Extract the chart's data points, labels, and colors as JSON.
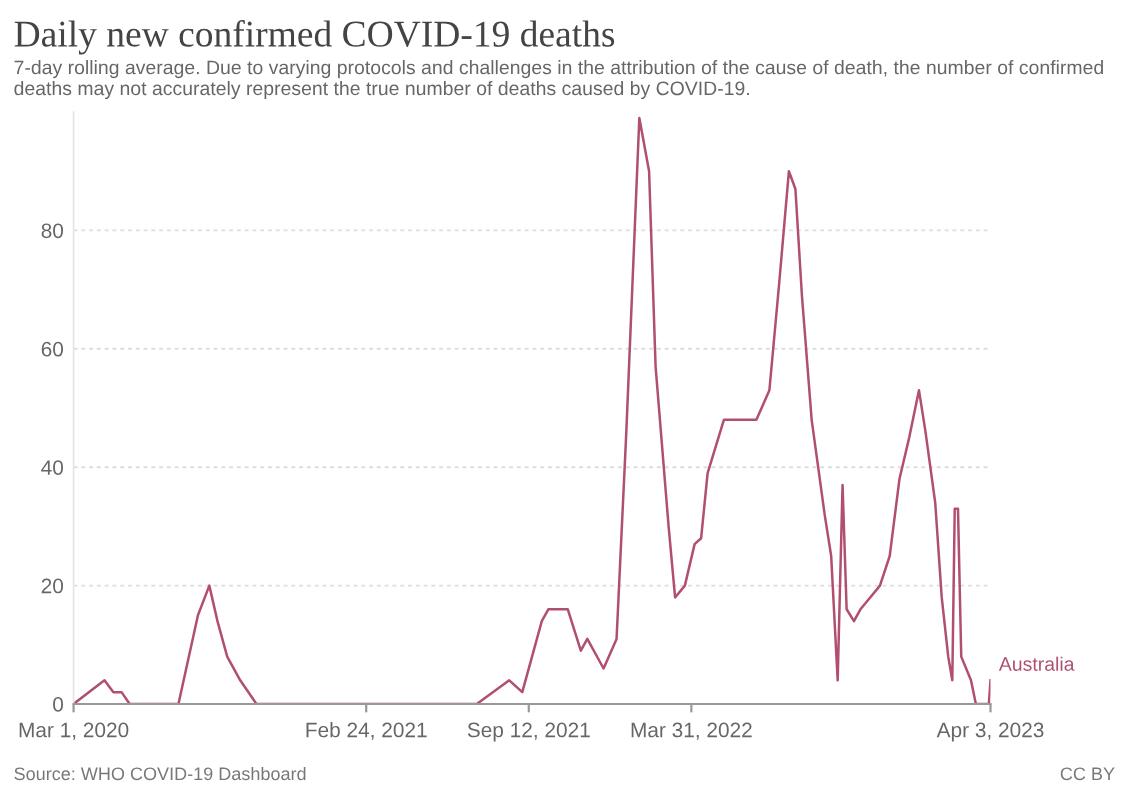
{
  "chart_data": {
    "type": "line",
    "title": "Daily new confirmed COVID-19 deaths",
    "subtitle": "7-day rolling average. Due to varying protocols and challenges in the attribution of the cause of death, the number of confirmed deaths may not accurately represent the true number of deaths caused by COVID-19.",
    "annotations": [
      "Source: WHO COVID-19 Dashboard",
      "CC BY"
    ],
    "x": [
      "2020-03-01",
      "2020-04-08",
      "2020-04-19",
      "2020-04-29",
      "2020-05-09",
      "2020-07-08",
      "2020-08-01",
      "2020-08-15",
      "2020-08-25",
      "2020-09-06",
      "2020-09-22",
      "2020-10-12",
      "2021-07-10",
      "2021-08-19",
      "2021-09-04",
      "2021-09-28",
      "2021-10-06",
      "2021-10-30",
      "2021-11-15",
      "2021-11-23",
      "2021-12-13",
      "2021-12-29",
      "2022-01-10",
      "2022-01-26",
      "2022-02-07",
      "2022-02-15",
      "2022-03-03",
      "2022-03-11",
      "2022-03-23",
      "2022-04-04",
      "2022-04-12",
      "2022-04-20",
      "2022-05-10",
      "2022-06-19",
      "2022-07-05",
      "2022-07-17",
      "2022-07-29",
      "2022-08-06",
      "2022-08-14",
      "2022-08-26",
      "2022-09-11",
      "2022-09-19",
      "2022-09-27",
      "2022-10-03",
      "2022-10-08",
      "2022-10-17",
      "2022-10-25",
      "2022-11-06",
      "2022-11-18",
      "2022-11-30",
      "2022-12-12",
      "2022-12-24",
      "2023-01-05",
      "2023-01-13",
      "2023-01-25",
      "2023-02-02",
      "2023-02-10",
      "2023-02-15",
      "2023-02-18",
      "2023-02-22",
      "2023-02-26",
      "2023-03-10",
      "2023-03-16",
      "2023-04-01",
      "2023-04-03"
    ],
    "series": [
      {
        "name": "Australia",
        "color": "#b0506e",
        "values": [
          0,
          4,
          2,
          2,
          0,
          0,
          15,
          20,
          14,
          8,
          4,
          0,
          0,
          4,
          2,
          14,
          16,
          16,
          9,
          11,
          6,
          11,
          46,
          99,
          90,
          57,
          30,
          18,
          20,
          27,
          28,
          39,
          48,
          48,
          53,
          71,
          90,
          87,
          69,
          48,
          32,
          25,
          4,
          37,
          16,
          14,
          16,
          18,
          20,
          25,
          38,
          45,
          53,
          46,
          34,
          18,
          8,
          4,
          33,
          33,
          8,
          4,
          0,
          0,
          4
        ]
      }
    ],
    "xlim": [
      "2020-03-01",
      "2023-04-03"
    ],
    "xticks": [
      {
        "value": "2020-03-01",
        "label": "Mar 1, 2020"
      },
      {
        "value": "2021-02-24",
        "label": "Feb 24, 2021"
      },
      {
        "value": "2021-09-12",
        "label": "Sep 12, 2021"
      },
      {
        "value": "2022-03-31",
        "label": "Mar 31, 2022"
      },
      {
        "value": "2023-04-03",
        "label": "Apr 3, 2023"
      }
    ],
    "ylim": [
      0,
      100
    ],
    "yticks": [
      0,
      20,
      40,
      60,
      80
    ],
    "grid": "y",
    "legend": false,
    "marker": "none",
    "line_style": "solid"
  }
}
